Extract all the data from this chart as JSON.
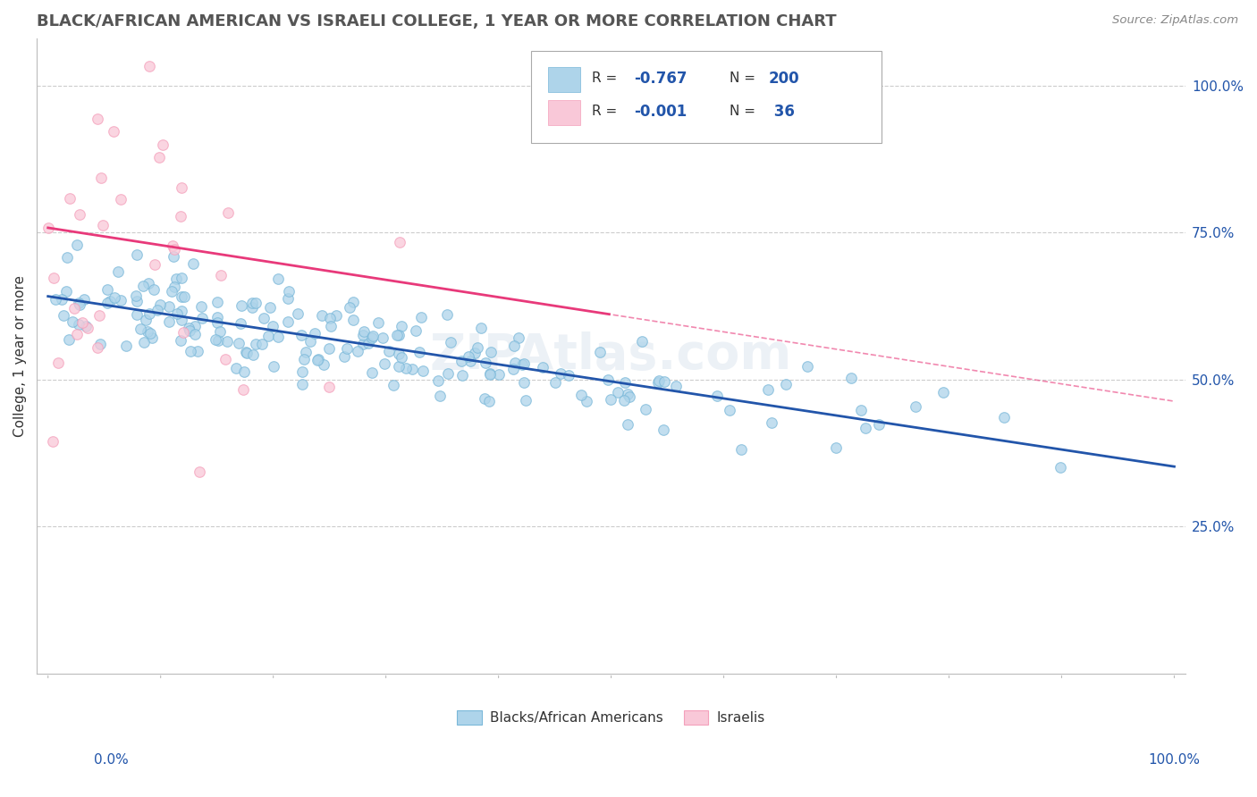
{
  "title": "BLACK/AFRICAN AMERICAN VS ISRAELI COLLEGE, 1 YEAR OR MORE CORRELATION CHART",
  "source_text": "Source: ZipAtlas.com",
  "ylabel": "College, 1 year or more",
  "ylabel_right_ticks": [
    "100.0%",
    "75.0%",
    "50.0%",
    "25.0%"
  ],
  "ylabel_right_positions": [
    1.0,
    0.75,
    0.5,
    0.25
  ],
  "blue_color": "#7ab8d9",
  "blue_fill": "#aed4ea",
  "pink_color": "#f4a0bb",
  "pink_fill": "#f9c8d8",
  "blue_line_color": "#2255aa",
  "pink_line_color": "#e8397a",
  "legend_text_color": "#2255aa",
  "title_color": "#555555",
  "background_color": "#ffffff",
  "grid_color": "#cccccc",
  "n_blue": 200,
  "n_pink": 36,
  "R_blue": -0.767,
  "R_pink": -0.001,
  "watermark": "ZIPAtlas.com"
}
